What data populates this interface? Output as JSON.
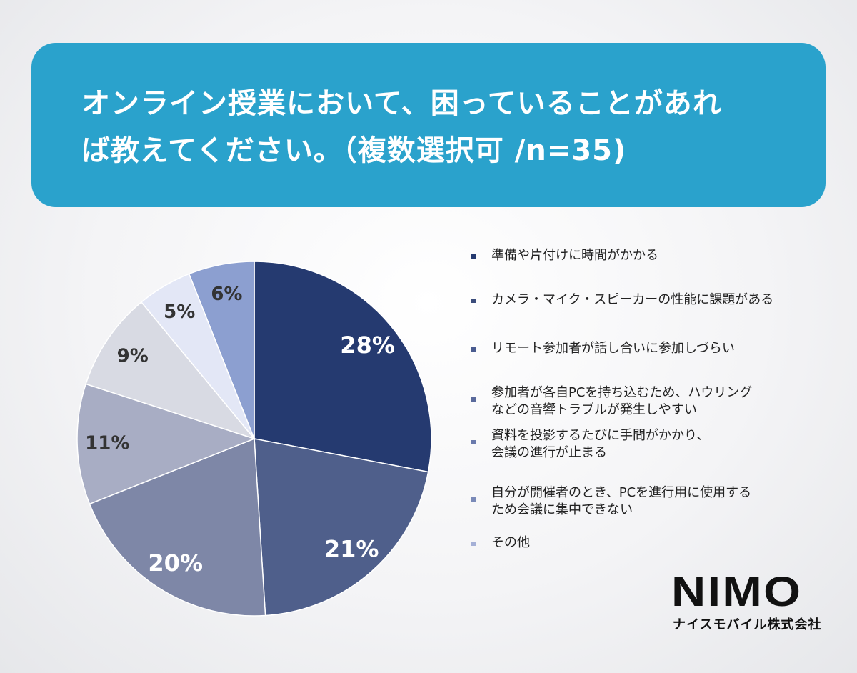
{
  "title": {
    "line1": "オンライン授業において、困っていることがあれ",
    "line2": "ば教えてください。（複数選択可 /n=35)"
  },
  "brand": {
    "name": "NIMO",
    "company": "ナイスモバイル株式会社"
  },
  "chart_data": {
    "type": "pie",
    "slices": [
      {
        "label": "準備や片付けに時間がかかる",
        "value": 28,
        "color": "#253a70",
        "label_color": "#ffffff"
      },
      {
        "label": "カメラ・マイク・スピーカーの性能に課題がある",
        "value": 21,
        "color": "#4f5f8b",
        "label_color": "#ffffff"
      },
      {
        "label": "リモート参加者が話し合いに参加しづらい",
        "value": 20,
        "color": "#7e87a7",
        "label_color": "#ffffff"
      },
      {
        "label": "参加者が各自PCを持ち込むため、ハウリング\nなどの音響トラブルが発生しやすい",
        "value": 11,
        "color": "#a8adc4",
        "label_color": "#333333"
      },
      {
        "label": "資料を投影するたびに手間がかかり、\n会議の進行が止まる",
        "value": 9,
        "color": "#d8dae3",
        "label_color": "#333333"
      },
      {
        "label": "自分が開催者のとき、PCを進行用に使用する\nため会議に集中できない",
        "value": 5,
        "color": "#e3e7f6",
        "label_color": "#333333"
      },
      {
        "label": "その他",
        "value": 6,
        "color": "#8c9fd0",
        "label_color": "#333333"
      }
    ],
    "value_labels": [
      "28%",
      "21%",
      "20%",
      "11%",
      "9%",
      "5%",
      "6%"
    ],
    "legend_marker_colors": [
      "#253a70",
      "#3b4d7c",
      "#4a5c90",
      "#5a6a9c",
      "#6a7aac",
      "#7a8ab8",
      "#a5b0d6"
    ]
  }
}
